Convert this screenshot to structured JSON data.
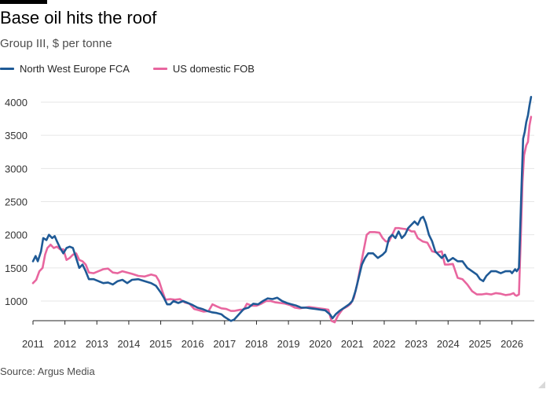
{
  "header": {
    "title": "Base oil hits the roof",
    "subtitle": "Group III, $ per tonne"
  },
  "footer": {
    "source": "Source: Argus Media"
  },
  "colors": {
    "nwe": "#1f5a96",
    "us": "#e8669f",
    "grid": "#e6e6e6",
    "axis": "#262626"
  },
  "chart_data": {
    "type": "line",
    "title": "Base oil hits the roof",
    "subtitle": "Group III, $ per tonne",
    "xlabel": "",
    "ylabel": "",
    "xlim": [
      2011,
      2026.7
    ],
    "ylim": [
      550,
      4100
    ],
    "yticks": [
      1000,
      1500,
      2000,
      2500,
      3000,
      3500,
      4000
    ],
    "xticks": [
      2011,
      2012,
      2013,
      2014,
      2015,
      2016,
      2017,
      2018,
      2019,
      2020,
      2021,
      2022,
      2023,
      2024,
      2025,
      2026
    ],
    "grid": "horizontal",
    "legend": "top-left",
    "series": [
      {
        "name": "North West Europe FCA",
        "color": "#1f5a96",
        "points": [
          [
            2011.0,
            1600
          ],
          [
            2011.08,
            1680
          ],
          [
            2011.15,
            1600
          ],
          [
            2011.25,
            1750
          ],
          [
            2011.32,
            1950
          ],
          [
            2011.42,
            1920
          ],
          [
            2011.5,
            2000
          ],
          [
            2011.6,
            1950
          ],
          [
            2011.68,
            1980
          ],
          [
            2011.75,
            1900
          ],
          [
            2011.85,
            1800
          ],
          [
            2011.95,
            1720
          ],
          [
            2012.05,
            1800
          ],
          [
            2012.15,
            1820
          ],
          [
            2012.25,
            1800
          ],
          [
            2012.35,
            1650
          ],
          [
            2012.45,
            1500
          ],
          [
            2012.55,
            1550
          ],
          [
            2012.65,
            1450
          ],
          [
            2012.75,
            1330
          ],
          [
            2012.9,
            1330
          ],
          [
            2013.05,
            1300
          ],
          [
            2013.2,
            1270
          ],
          [
            2013.35,
            1280
          ],
          [
            2013.5,
            1250
          ],
          [
            2013.65,
            1300
          ],
          [
            2013.8,
            1320
          ],
          [
            2013.95,
            1270
          ],
          [
            2014.1,
            1320
          ],
          [
            2014.3,
            1330
          ],
          [
            2014.5,
            1300
          ],
          [
            2014.7,
            1270
          ],
          [
            2014.85,
            1230
          ],
          [
            2015.0,
            1130
          ],
          [
            2015.1,
            1050
          ],
          [
            2015.2,
            950
          ],
          [
            2015.3,
            950
          ],
          [
            2015.4,
            1000
          ],
          [
            2015.55,
            970
          ],
          [
            2015.7,
            1000
          ],
          [
            2015.85,
            970
          ],
          [
            2016.0,
            940
          ],
          [
            2016.15,
            900
          ],
          [
            2016.3,
            880
          ],
          [
            2016.45,
            850
          ],
          [
            2016.6,
            830
          ],
          [
            2016.75,
            820
          ],
          [
            2016.9,
            800
          ],
          [
            2017.0,
            760
          ],
          [
            2017.1,
            730
          ],
          [
            2017.2,
            700
          ],
          [
            2017.3,
            720
          ],
          [
            2017.45,
            800
          ],
          [
            2017.6,
            880
          ],
          [
            2017.75,
            900
          ],
          [
            2017.9,
            960
          ],
          [
            2018.05,
            950
          ],
          [
            2018.2,
            1000
          ],
          [
            2018.35,
            1040
          ],
          [
            2018.5,
            1030
          ],
          [
            2018.65,
            1050
          ],
          [
            2018.8,
            1000
          ],
          [
            2018.95,
            970
          ],
          [
            2019.1,
            950
          ],
          [
            2019.25,
            930
          ],
          [
            2019.4,
            900
          ],
          [
            2019.55,
            900
          ],
          [
            2019.7,
            890
          ],
          [
            2019.85,
            880
          ],
          [
            2020.0,
            870
          ],
          [
            2020.15,
            860
          ],
          [
            2020.3,
            800
          ],
          [
            2020.38,
            740
          ],
          [
            2020.48,
            800
          ],
          [
            2020.6,
            850
          ],
          [
            2020.75,
            900
          ],
          [
            2020.9,
            950
          ],
          [
            2021.0,
            1000
          ],
          [
            2021.1,
            1150
          ],
          [
            2021.2,
            1350
          ],
          [
            2021.3,
            1550
          ],
          [
            2021.4,
            1650
          ],
          [
            2021.5,
            1720
          ],
          [
            2021.65,
            1720
          ],
          [
            2021.8,
            1650
          ],
          [
            2021.95,
            1700
          ],
          [
            2022.05,
            1750
          ],
          [
            2022.15,
            1950
          ],
          [
            2022.25,
            2000
          ],
          [
            2022.35,
            1950
          ],
          [
            2022.45,
            2050
          ],
          [
            2022.55,
            1950
          ],
          [
            2022.65,
            2000
          ],
          [
            2022.75,
            2100
          ],
          [
            2022.85,
            2150
          ],
          [
            2022.95,
            2200
          ],
          [
            2023.05,
            2150
          ],
          [
            2023.15,
            2250
          ],
          [
            2023.22,
            2270
          ],
          [
            2023.3,
            2180
          ],
          [
            2023.4,
            2000
          ],
          [
            2023.5,
            1900
          ],
          [
            2023.6,
            1750
          ],
          [
            2023.7,
            1700
          ],
          [
            2023.8,
            1650
          ],
          [
            2023.9,
            1700
          ],
          [
            2024.0,
            1600
          ],
          [
            2024.15,
            1650
          ],
          [
            2024.3,
            1600
          ],
          [
            2024.45,
            1600
          ],
          [
            2024.6,
            1500
          ],
          [
            2024.75,
            1450
          ],
          [
            2024.9,
            1400
          ],
          [
            2025.0,
            1330
          ],
          [
            2025.1,
            1300
          ],
          [
            2025.2,
            1380
          ],
          [
            2025.35,
            1450
          ],
          [
            2025.5,
            1450
          ],
          [
            2025.65,
            1420
          ],
          [
            2025.8,
            1450
          ],
          [
            2025.95,
            1450
          ],
          [
            2026.0,
            1420
          ],
          [
            2026.1,
            1480
          ],
          [
            2026.15,
            1450
          ],
          [
            2026.22,
            1500
          ],
          [
            2026.3,
            2700
          ],
          [
            2026.35,
            3450
          ],
          [
            2026.4,
            3550
          ],
          [
            2026.45,
            3700
          ],
          [
            2026.5,
            3800
          ],
          [
            2026.55,
            3950
          ],
          [
            2026.6,
            4080
          ]
        ]
      },
      {
        "name": "US domestic FOB",
        "color": "#e8669f",
        "points": [
          [
            2011.0,
            1270
          ],
          [
            2011.1,
            1320
          ],
          [
            2011.2,
            1450
          ],
          [
            2011.3,
            1500
          ],
          [
            2011.38,
            1700
          ],
          [
            2011.45,
            1800
          ],
          [
            2011.55,
            1850
          ],
          [
            2011.65,
            1800
          ],
          [
            2011.75,
            1820
          ],
          [
            2011.85,
            1780
          ],
          [
            2011.95,
            1780
          ],
          [
            2012.05,
            1620
          ],
          [
            2012.15,
            1650
          ],
          [
            2012.25,
            1700
          ],
          [
            2012.35,
            1720
          ],
          [
            2012.45,
            1620
          ],
          [
            2012.55,
            1600
          ],
          [
            2012.65,
            1550
          ],
          [
            2012.75,
            1430
          ],
          [
            2012.9,
            1420
          ],
          [
            2013.05,
            1450
          ],
          [
            2013.2,
            1480
          ],
          [
            2013.35,
            1490
          ],
          [
            2013.5,
            1430
          ],
          [
            2013.65,
            1420
          ],
          [
            2013.8,
            1450
          ],
          [
            2013.95,
            1430
          ],
          [
            2014.1,
            1410
          ],
          [
            2014.3,
            1380
          ],
          [
            2014.5,
            1370
          ],
          [
            2014.7,
            1400
          ],
          [
            2014.85,
            1380
          ],
          [
            2014.95,
            1300
          ],
          [
            2015.05,
            1150
          ],
          [
            2015.15,
            1020
          ],
          [
            2015.3,
            1030
          ],
          [
            2015.45,
            1020
          ],
          [
            2015.6,
            1030
          ],
          [
            2015.75,
            980
          ],
          [
            2015.9,
            960
          ],
          [
            2016.05,
            880
          ],
          [
            2016.2,
            860
          ],
          [
            2016.35,
            840
          ],
          [
            2016.5,
            850
          ],
          [
            2016.62,
            950
          ],
          [
            2016.75,
            920
          ],
          [
            2016.9,
            890
          ],
          [
            2017.05,
            880
          ],
          [
            2017.2,
            850
          ],
          [
            2017.3,
            850
          ],
          [
            2017.4,
            860
          ],
          [
            2017.5,
            870
          ],
          [
            2017.6,
            870
          ],
          [
            2017.7,
            960
          ],
          [
            2017.85,
            930
          ],
          [
            2018.0,
            930
          ],
          [
            2018.15,
            960
          ],
          [
            2018.3,
            1000
          ],
          [
            2018.45,
            1000
          ],
          [
            2018.6,
            980
          ],
          [
            2018.75,
            970
          ],
          [
            2018.9,
            960
          ],
          [
            2019.05,
            940
          ],
          [
            2019.2,
            900
          ],
          [
            2019.35,
            890
          ],
          [
            2019.5,
            900
          ],
          [
            2019.65,
            910
          ],
          [
            2019.8,
            900
          ],
          [
            2019.95,
            890
          ],
          [
            2020.1,
            880
          ],
          [
            2020.25,
            870
          ],
          [
            2020.35,
            700
          ],
          [
            2020.45,
            680
          ],
          [
            2020.55,
            780
          ],
          [
            2020.7,
            880
          ],
          [
            2020.85,
            920
          ],
          [
            2020.95,
            960
          ],
          [
            2021.05,
            1050
          ],
          [
            2021.15,
            1250
          ],
          [
            2021.25,
            1500
          ],
          [
            2021.35,
            1750
          ],
          [
            2021.45,
            2000
          ],
          [
            2021.55,
            2040
          ],
          [
            2021.7,
            2040
          ],
          [
            2021.85,
            2030
          ],
          [
            2021.95,
            1950
          ],
          [
            2022.05,
            1900
          ],
          [
            2022.15,
            1900
          ],
          [
            2022.25,
            2000
          ],
          [
            2022.35,
            2100
          ],
          [
            2022.45,
            2100
          ],
          [
            2022.6,
            2090
          ],
          [
            2022.75,
            2080
          ],
          [
            2022.85,
            2050
          ],
          [
            2022.95,
            2050
          ],
          [
            2023.05,
            1950
          ],
          [
            2023.2,
            1900
          ],
          [
            2023.35,
            1880
          ],
          [
            2023.5,
            1750
          ],
          [
            2023.65,
            1730
          ],
          [
            2023.8,
            1750
          ],
          [
            2023.9,
            1550
          ],
          [
            2024.0,
            1550
          ],
          [
            2024.15,
            1560
          ],
          [
            2024.3,
            1350
          ],
          [
            2024.45,
            1330
          ],
          [
            2024.6,
            1250
          ],
          [
            2024.75,
            1150
          ],
          [
            2024.9,
            1100
          ],
          [
            2025.05,
            1100
          ],
          [
            2025.2,
            1110
          ],
          [
            2025.35,
            1100
          ],
          [
            2025.5,
            1120
          ],
          [
            2025.65,
            1110
          ],
          [
            2025.8,
            1090
          ],
          [
            2025.95,
            1100
          ],
          [
            2026.05,
            1120
          ],
          [
            2026.1,
            1090
          ],
          [
            2026.15,
            1080
          ],
          [
            2026.22,
            1100
          ],
          [
            2026.28,
            2000
          ],
          [
            2026.33,
            2800
          ],
          [
            2026.38,
            3200
          ],
          [
            2026.45,
            3350
          ],
          [
            2026.5,
            3400
          ],
          [
            2026.55,
            3650
          ],
          [
            2026.6,
            3780
          ]
        ]
      }
    ]
  }
}
